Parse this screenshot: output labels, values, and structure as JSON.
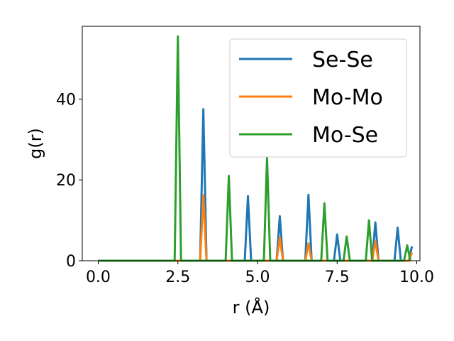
{
  "chart_data": {
    "type": "line",
    "xlabel": "r (Å)",
    "ylabel": "g(r)",
    "xlim": [
      -0.5,
      10.1
    ],
    "ylim": [
      0,
      58
    ],
    "xticks": [
      0.0,
      2.5,
      5.0,
      7.5,
      10.0
    ],
    "xtick_labels": [
      "0.0",
      "2.5",
      "5.0",
      "7.5",
      "10.0"
    ],
    "yticks": [
      0,
      20,
      40
    ],
    "ytick_labels": [
      "0",
      "20",
      "40"
    ],
    "grid": false,
    "legend_position": "top-right",
    "series": [
      {
        "name": "Se-Se",
        "color": "#1f77b4",
        "x": [
          0.0,
          3.2,
          3.3,
          3.4,
          4.6,
          4.7,
          4.8,
          5.6,
          5.7,
          5.8,
          6.5,
          6.6,
          6.7,
          7.4,
          7.5,
          7.6,
          8.6,
          8.7,
          8.8,
          9.3,
          9.4,
          9.5,
          9.75,
          9.85
        ],
        "y": [
          0,
          0,
          37.5,
          0,
          0,
          16,
          0,
          0,
          11,
          0,
          0,
          16.3,
          0,
          0,
          6.5,
          0,
          0,
          9.5,
          0,
          0,
          8.2,
          0,
          0,
          3.6
        ]
      },
      {
        "name": "Mo-Mo",
        "color": "#ff7f0e",
        "x": [
          0.0,
          3.2,
          3.3,
          3.4,
          5.6,
          5.7,
          5.8,
          6.5,
          6.6,
          6.7,
          8.6,
          8.7,
          8.8,
          9.75,
          9.85
        ],
        "y": [
          0,
          0,
          16.2,
          0,
          0,
          5.8,
          0,
          0,
          4.3,
          0,
          0,
          4.8,
          0,
          0,
          2
        ]
      },
      {
        "name": "Mo-Se",
        "color": "#2ca02c",
        "x": [
          0.0,
          2.4,
          2.5,
          2.6,
          4.0,
          4.1,
          4.2,
          5.2,
          5.3,
          5.4,
          7.0,
          7.1,
          7.2,
          7.7,
          7.8,
          7.9,
          8.4,
          8.5,
          8.6,
          9.6,
          9.7,
          9.8
        ],
        "y": [
          0,
          0,
          55.5,
          0,
          0,
          21,
          0,
          0,
          25.5,
          0,
          0,
          14.2,
          0,
          0,
          6,
          0,
          0,
          10,
          0,
          0,
          3.8,
          0
        ]
      }
    ]
  }
}
